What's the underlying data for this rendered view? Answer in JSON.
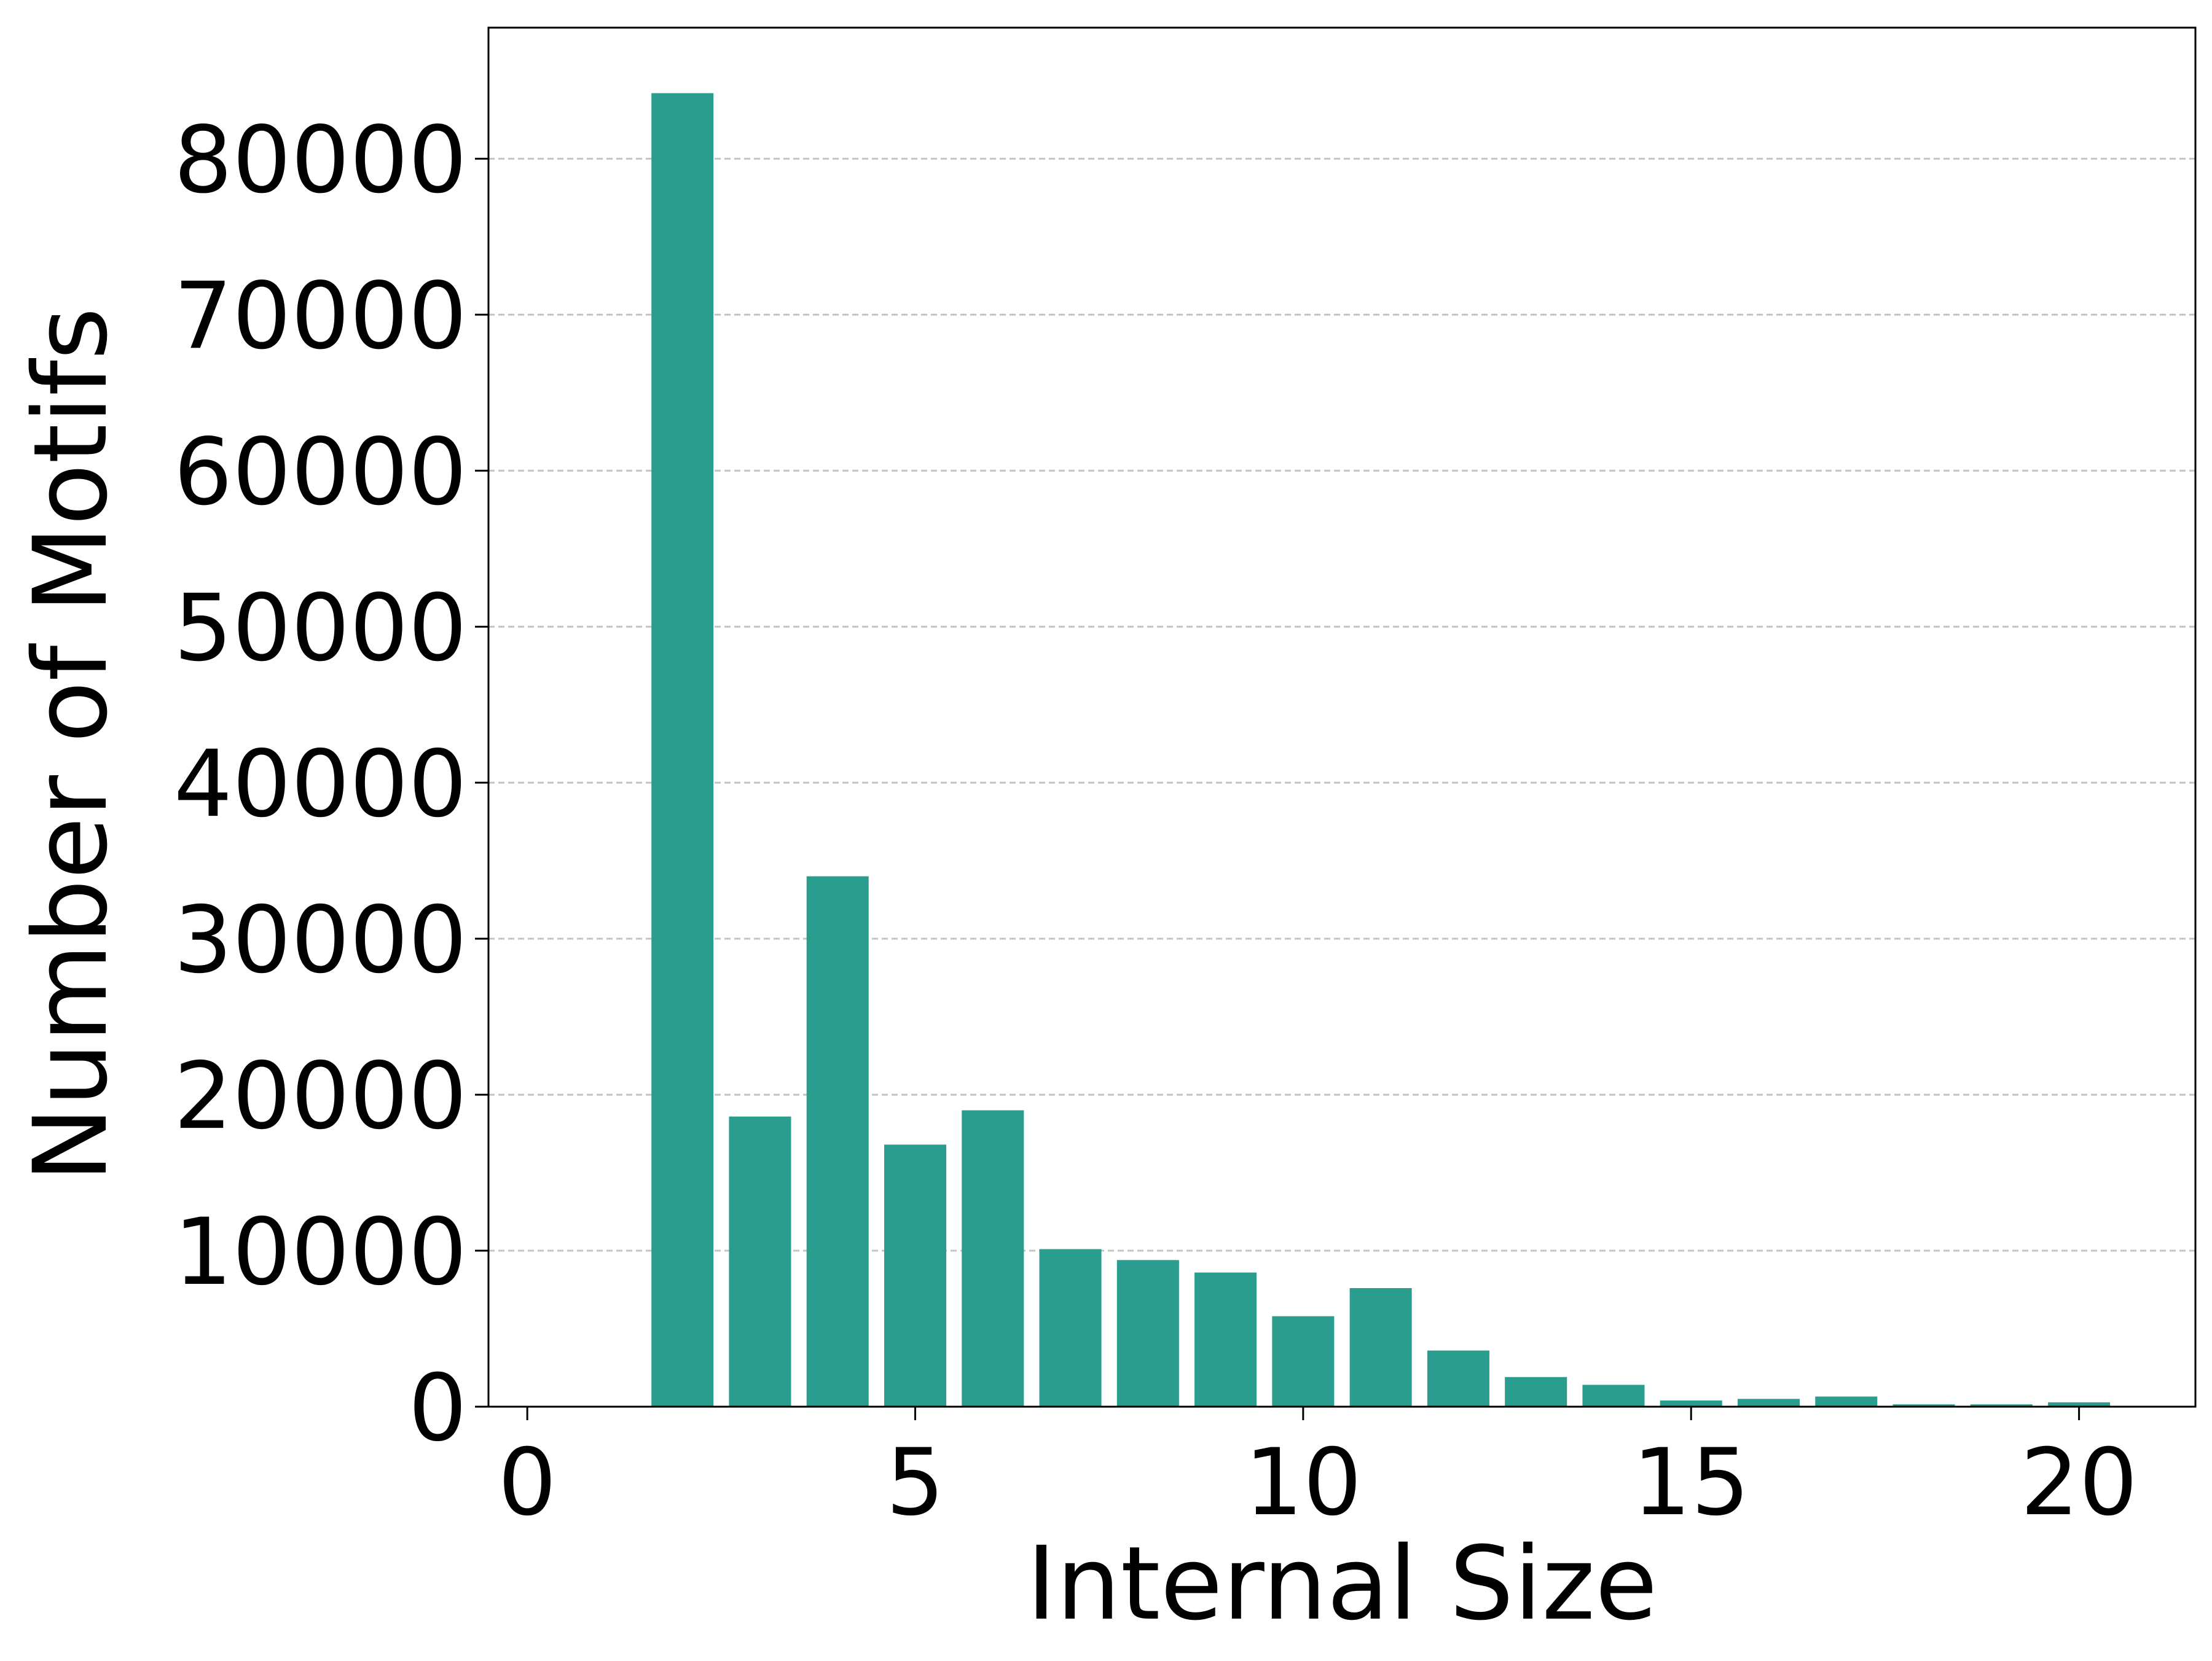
{
  "chart_data": {
    "type": "bar",
    "x": [
      2,
      3,
      4,
      5,
      6,
      7,
      8,
      9,
      10,
      11,
      12,
      13,
      14,
      15,
      16,
      17,
      18,
      19,
      20,
      21
    ],
    "values": [
      84200,
      18600,
      34000,
      16800,
      19000,
      10100,
      9400,
      8600,
      5800,
      7600,
      3600,
      1900,
      1400,
      400,
      500,
      650,
      150,
      150,
      280,
      50
    ],
    "xlabel": "Internal Size",
    "ylabel": "Number of Motifs",
    "xlim": [
      -0.5,
      21.5
    ],
    "ylim": [
      0,
      88400
    ],
    "xticks": [
      0,
      5,
      10,
      15,
      20
    ],
    "yticks": [
      0,
      10000,
      20000,
      30000,
      40000,
      50000,
      60000,
      70000,
      80000
    ],
    "grid": "y-dashed",
    "bar_color": "#2a9d8f"
  }
}
